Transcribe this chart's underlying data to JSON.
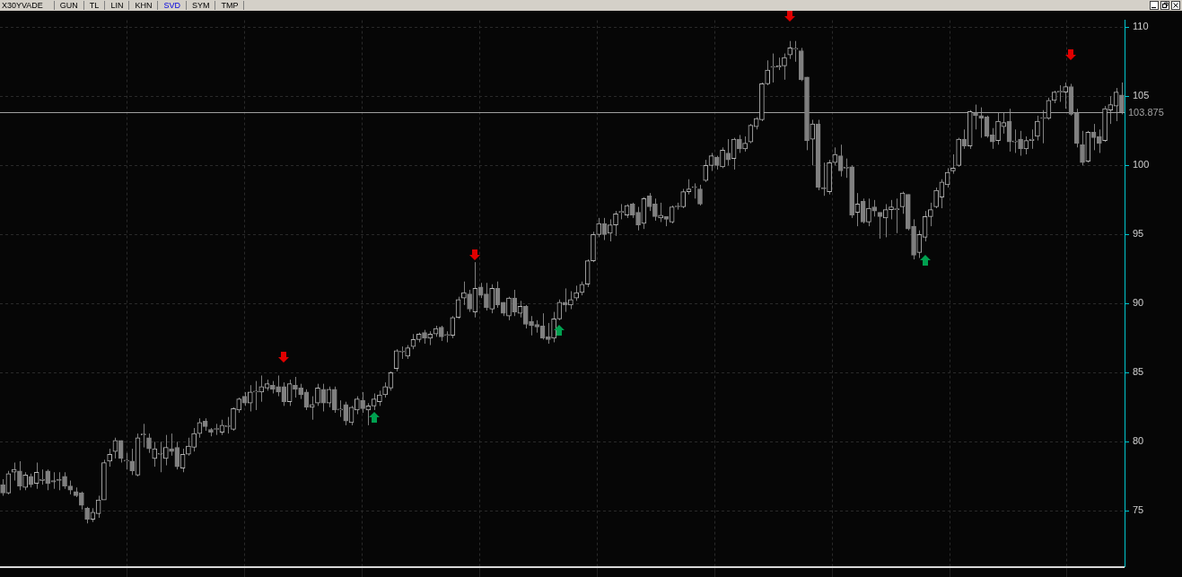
{
  "chart_data": {
    "type": "candlestick",
    "title": "X30YVADE",
    "annotations": [
      "GUN",
      "TL",
      "LIN",
      "KHN",
      "SVD",
      "SYM",
      "TMP"
    ],
    "categories": [
      null,
      null,
      null,
      null,
      null,
      null,
      null,
      null,
      null,
      null,
      null,
      null,
      null,
      null,
      null,
      null,
      null,
      null,
      null,
      null,
      null,
      null,
      null,
      null,
      null,
      null,
      null,
      null,
      null,
      null,
      null,
      null,
      null,
      null,
      null,
      null,
      null,
      null,
      null,
      null,
      null,
      null,
      null,
      null,
      null,
      null,
      null,
      null,
      null,
      null,
      null,
      null,
      null,
      null,
      null,
      null,
      null,
      null,
      null,
      null,
      null,
      null,
      null,
      null,
      null,
      null,
      null,
      null,
      null,
      null,
      null,
      null,
      null,
      null,
      null,
      null,
      null,
      null,
      null,
      null,
      null,
      null,
      null,
      null,
      null,
      null,
      null,
      null,
      null,
      null,
      null,
      null,
      null,
      null,
      null,
      null,
      null,
      null,
      null,
      null,
      null,
      null,
      null,
      null,
      null,
      null,
      null,
      null,
      null,
      null,
      null,
      null,
      null,
      null,
      null,
      null,
      null,
      null,
      null,
      null,
      null,
      null,
      null,
      null,
      null,
      null,
      null,
      null,
      null,
      null,
      null,
      null,
      null,
      null,
      null,
      null,
      null,
      null,
      null,
      null,
      null,
      null,
      null,
      null,
      null,
      null,
      null,
      null,
      null,
      null,
      null,
      null,
      null,
      null,
      null,
      null,
      null,
      null,
      null,
      null,
      null,
      null,
      null,
      null,
      null,
      null,
      null,
      null,
      null,
      null,
      null,
      null,
      null,
      null,
      null,
      null,
      null,
      null,
      null,
      null,
      null,
      null,
      null,
      null,
      null,
      null,
      null,
      null,
      null,
      null,
      null,
      null,
      null,
      null,
      null,
      null,
      null,
      null,
      null,
      null
    ],
    "ohlc": [
      [
        76.9,
        77.3,
        76.1,
        76.3
      ],
      [
        76.3,
        77.9,
        76.2,
        77.7
      ],
      [
        77.8,
        78.5,
        77.2,
        78.0
      ],
      [
        77.9,
        78.6,
        76.5,
        76.8
      ],
      [
        76.7,
        77.8,
        76.5,
        77.6
      ],
      [
        77.5,
        77.7,
        76.7,
        76.9
      ],
      [
        77.0,
        78.5,
        76.6,
        77.8
      ],
      [
        77.2,
        78.0,
        76.9,
        77.3
      ],
      [
        77.9,
        78.0,
        76.5,
        77.0
      ],
      [
        77.2,
        77.8,
        76.6,
        77.1
      ],
      [
        77.3,
        77.8,
        76.5,
        77.2
      ],
      [
        77.5,
        77.8,
        76.6,
        76.8
      ],
      [
        76.8,
        77.2,
        76.2,
        76.5
      ],
      [
        76.4,
        76.7,
        76.0,
        76.1
      ],
      [
        76.3,
        76.4,
        75.1,
        75.4
      ],
      [
        75.2,
        75.3,
        74.1,
        74.4
      ],
      [
        74.4,
        75.2,
        74.2,
        74.9
      ],
      [
        74.8,
        76.1,
        74.5,
        75.8
      ],
      [
        75.8,
        78.7,
        75.8,
        78.5
      ],
      [
        78.6,
        79.5,
        78.2,
        79.1
      ],
      [
        79.3,
        80.3,
        78.8,
        80.1
      ],
      [
        80.1,
        80.1,
        78.5,
        78.8
      ],
      [
        78.6,
        79.2,
        78.0,
        78.6
      ],
      [
        78.6,
        79.5,
        77.6,
        77.9
      ],
      [
        77.6,
        80.6,
        77.5,
        80.3
      ],
      [
        80.5,
        81.3,
        79.6,
        80.5
      ],
      [
        80.3,
        80.6,
        79.2,
        79.5
      ],
      [
        78.8,
        80.0,
        78.2,
        79.5
      ],
      [
        79.1,
        80.0,
        77.8,
        79.1
      ],
      [
        78.8,
        80.5,
        78.3,
        79.6
      ],
      [
        79.5,
        80.6,
        79.0,
        79.3
      ],
      [
        79.6,
        80.0,
        78.0,
        78.2
      ],
      [
        78.1,
        79.5,
        77.8,
        79.1
      ],
      [
        79.1,
        80.3,
        79.0,
        79.7
      ],
      [
        79.6,
        81.0,
        79.3,
        80.6
      ],
      [
        80.6,
        81.7,
        80.3,
        81.4
      ],
      [
        81.5,
        81.7,
        80.8,
        81.1
      ],
      [
        80.9,
        81.0,
        80.4,
        80.7
      ],
      [
        80.9,
        81.3,
        80.5,
        80.9
      ],
      [
        80.7,
        81.6,
        80.5,
        81.2
      ],
      [
        81.1,
        81.8,
        80.6,
        81.1
      ],
      [
        80.9,
        82.5,
        80.8,
        82.4
      ],
      [
        82.3,
        83.2,
        82.1,
        83.1
      ],
      [
        83.3,
        83.6,
        82.6,
        82.8
      ],
      [
        82.8,
        84.1,
        82.2,
        83.6
      ],
      [
        83.6,
        84.4,
        82.3,
        83.6
      ],
      [
        83.6,
        84.8,
        82.9,
        84.0
      ],
      [
        83.9,
        84.5,
        83.7,
        84.2
      ],
      [
        84.1,
        84.4,
        83.5,
        83.8
      ],
      [
        84.0,
        84.8,
        83.3,
        83.6
      ],
      [
        84.0,
        84.3,
        82.6,
        82.9
      ],
      [
        82.9,
        84.5,
        82.6,
        84.2
      ],
      [
        84.1,
        84.7,
        83.2,
        83.8
      ],
      [
        83.9,
        84.2,
        83.1,
        83.4
      ],
      [
        83.6,
        83.8,
        82.3,
        82.5
      ],
      [
        82.5,
        83.3,
        81.6,
        82.7
      ],
      [
        82.8,
        84.2,
        82.6,
        83.9
      ],
      [
        83.8,
        84.2,
        82.2,
        82.8
      ],
      [
        82.8,
        84.0,
        82.5,
        83.8
      ],
      [
        83.8,
        84.0,
        82.1,
        82.3
      ],
      [
        82.3,
        83.0,
        81.8,
        82.3
      ],
      [
        82.7,
        82.9,
        81.2,
        81.5
      ],
      [
        81.4,
        82.6,
        81.2,
        82.5
      ],
      [
        82.3,
        83.3,
        82.0,
        83.1
      ],
      [
        83.0,
        83.6,
        82.1,
        82.4
      ],
      [
        82.3,
        82.8,
        81.2,
        82.6
      ],
      [
        82.6,
        83.5,
        82.3,
        83.1
      ],
      [
        82.9,
        83.7,
        82.6,
        83.4
      ],
      [
        83.4,
        84.3,
        83.2,
        84.0
      ],
      [
        83.9,
        85.1,
        83.7,
        85.0
      ],
      [
        85.3,
        86.7,
        85.1,
        86.6
      ],
      [
        86.5,
        86.9,
        86.0,
        86.5
      ],
      [
        86.2,
        87.0,
        86.0,
        86.8
      ],
      [
        86.9,
        87.8,
        86.7,
        87.4
      ],
      [
        87.4,
        87.9,
        87.2,
        87.8
      ],
      [
        87.9,
        88.1,
        87.1,
        87.5
      ],
      [
        87.5,
        88.0,
        87.0,
        87.8
      ],
      [
        87.8,
        88.4,
        87.6,
        88.2
      ],
      [
        88.3,
        88.4,
        87.3,
        87.6
      ],
      [
        87.7,
        88.0,
        87.2,
        87.7
      ],
      [
        87.7,
        89.1,
        87.5,
        89.0
      ],
      [
        89.0,
        90.5,
        88.9,
        90.3
      ],
      [
        90.4,
        91.6,
        89.9,
        90.8
      ],
      [
        90.7,
        91.0,
        89.4,
        89.6
      ],
      [
        89.4,
        93.0,
        89.0,
        91.1
      ],
      [
        91.2,
        91.5,
        90.4,
        90.6
      ],
      [
        90.7,
        91.5,
        89.5,
        89.7
      ],
      [
        89.6,
        91.4,
        89.3,
        91.1
      ],
      [
        91.1,
        91.6,
        89.7,
        89.9
      ],
      [
        90.1,
        90.1,
        89.1,
        89.3
      ],
      [
        89.1,
        90.5,
        88.8,
        90.4
      ],
      [
        90.4,
        91.0,
        89.1,
        89.4
      ],
      [
        89.3,
        90.2,
        89.0,
        89.8
      ],
      [
        89.8,
        89.9,
        88.2,
        88.5
      ],
      [
        88.7,
        89.1,
        87.7,
        88.4
      ],
      [
        88.5,
        88.8,
        87.9,
        88.3
      ],
      [
        88.4,
        89.3,
        87.4,
        87.5
      ],
      [
        87.6,
        88.6,
        87.1,
        87.4
      ],
      [
        87.5,
        89.4,
        87.2,
        88.9
      ],
      [
        88.9,
        90.3,
        88.8,
        90.1
      ],
      [
        90.1,
        91.1,
        89.4,
        89.9
      ],
      [
        89.9,
        90.9,
        89.6,
        90.3
      ],
      [
        90.4,
        91.3,
        90.2,
        90.8
      ],
      [
        90.8,
        91.6,
        90.6,
        91.4
      ],
      [
        91.4,
        93.2,
        91.2,
        93.1
      ],
      [
        93.1,
        95.2,
        93.0,
        95.0
      ],
      [
        95.0,
        96.2,
        94.8,
        95.8
      ],
      [
        95.8,
        96.2,
        94.6,
        95.0
      ],
      [
        95.1,
        96.1,
        94.5,
        95.7
      ],
      [
        95.7,
        96.7,
        94.9,
        96.5
      ],
      [
        96.6,
        97.2,
        96.1,
        96.6
      ],
      [
        96.4,
        97.2,
        96.2,
        97.1
      ],
      [
        97.2,
        97.3,
        96.2,
        96.4
      ],
      [
        96.6,
        97.0,
        95.3,
        95.7
      ],
      [
        95.8,
        97.7,
        95.4,
        97.6
      ],
      [
        97.8,
        98.0,
        96.7,
        97.0
      ],
      [
        97.2,
        97.6,
        96.0,
        96.3
      ],
      [
        96.2,
        97.3,
        95.9,
        96.4
      ],
      [
        96.3,
        96.3,
        95.6,
        96.1
      ],
      [
        95.9,
        97.1,
        95.8,
        97.0
      ],
      [
        97.0,
        97.3,
        96.8,
        97.0
      ],
      [
        97.0,
        98.3,
        96.9,
        98.1
      ],
      [
        98.1,
        99.0,
        97.9,
        98.3
      ],
      [
        98.4,
        98.7,
        97.6,
        98.4
      ],
      [
        98.3,
        98.6,
        97.1,
        97.2
      ],
      [
        98.9,
        100.4,
        98.8,
        100.0
      ],
      [
        100.0,
        100.9,
        99.6,
        100.7
      ],
      [
        100.6,
        100.7,
        99.7,
        100.0
      ],
      [
        99.9,
        101.3,
        99.8,
        101.1
      ],
      [
        100.9,
        101.9,
        100.0,
        100.4
      ],
      [
        100.5,
        102.0,
        99.7,
        101.9
      ],
      [
        101.9,
        102.2,
        100.9,
        101.2
      ],
      [
        101.2,
        102.1,
        101.0,
        101.6
      ],
      [
        101.7,
        103.0,
        101.6,
        102.9
      ],
      [
        102.8,
        103.5,
        102.6,
        103.4
      ],
      [
        103.3,
        106.0,
        103.2,
        105.9
      ],
      [
        105.9,
        107.6,
        105.8,
        106.9
      ],
      [
        107.1,
        108.1,
        106.0,
        107.1
      ],
      [
        107.1,
        107.8,
        106.9,
        107.2
      ],
      [
        107.2,
        108.1,
        106.2,
        107.8
      ],
      [
        108.0,
        109.0,
        107.7,
        108.5
      ],
      [
        108.4,
        109.0,
        107.5,
        108.4
      ],
      [
        108.3,
        108.5,
        106.1,
        106.2
      ],
      [
        106.4,
        106.4,
        101.1,
        101.8
      ],
      [
        101.9,
        103.3,
        100.0,
        103.0
      ],
      [
        103.0,
        103.3,
        98.2,
        98.4
      ],
      [
        98.4,
        100.2,
        97.8,
        98.3
      ],
      [
        98.1,
        100.4,
        97.9,
        100.2
      ],
      [
        100.2,
        101.3,
        100.0,
        100.8
      ],
      [
        100.7,
        101.5,
        99.2,
        99.6
      ],
      [
        99.8,
        100.5,
        99.1,
        99.8
      ],
      [
        99.9,
        100.0,
        96.2,
        96.4
      ],
      [
        96.6,
        98.0,
        95.6,
        97.2
      ],
      [
        97.4,
        97.6,
        95.8,
        95.9
      ],
      [
        95.9,
        97.6,
        95.6,
        96.9
      ],
      [
        97.0,
        97.5,
        96.3,
        96.7
      ],
      [
        96.6,
        96.6,
        94.7,
        96.3
      ],
      [
        96.2,
        97.2,
        94.8,
        96.8
      ],
      [
        96.8,
        97.5,
        96.1,
        97.0
      ],
      [
        96.8,
        97.6,
        95.1,
        96.8
      ],
      [
        97.0,
        98.1,
        96.5,
        98.0
      ],
      [
        97.9,
        97.9,
        95.3,
        95.4
      ],
      [
        95.6,
        96.1,
        93.2,
        93.5
      ],
      [
        93.7,
        95.3,
        93.3,
        95.0
      ],
      [
        94.8,
        96.7,
        94.5,
        96.3
      ],
      [
        96.3,
        97.3,
        95.6,
        96.8
      ],
      [
        97.0,
        98.4,
        96.9,
        98.2
      ],
      [
        97.7,
        99.0,
        96.9,
        98.8
      ],
      [
        98.6,
        99.8,
        98.4,
        99.5
      ],
      [
        99.6,
        100.8,
        99.4,
        99.8
      ],
      [
        100.0,
        102.0,
        99.9,
        101.9
      ],
      [
        101.9,
        102.6,
        101.2,
        101.4
      ],
      [
        101.4,
        104.0,
        101.2,
        103.9
      ],
      [
        103.8,
        104.4,
        102.6,
        103.6
      ],
      [
        103.6,
        104.2,
        102.0,
        103.4
      ],
      [
        103.5,
        103.6,
        102.0,
        102.1
      ],
      [
        102.2,
        102.7,
        101.2,
        101.7
      ],
      [
        101.8,
        103.8,
        101.5,
        103.2
      ],
      [
        102.8,
        103.8,
        102.3,
        103.1
      ],
      [
        103.2,
        104.1,
        101.0,
        101.7
      ],
      [
        101.7,
        102.6,
        100.9,
        101.7
      ],
      [
        101.9,
        102.5,
        100.7,
        101.2
      ],
      [
        101.2,
        102.1,
        100.8,
        101.8
      ],
      [
        101.8,
        102.6,
        101.2,
        101.9
      ],
      [
        102.1,
        103.6,
        101.8,
        103.2
      ],
      [
        103.4,
        104.0,
        101.6,
        103.4
      ],
      [
        103.4,
        104.9,
        103.3,
        104.7
      ],
      [
        104.7,
        105.4,
        104.5,
        105.3
      ],
      [
        105.3,
        105.8,
        104.6,
        105.3
      ],
      [
        105.3,
        106.0,
        104.1,
        105.7
      ],
      [
        105.7,
        105.9,
        103.6,
        103.7
      ],
      [
        103.8,
        104.1,
        101.3,
        101.6
      ],
      [
        101.5,
        102.5,
        100.0,
        100.2
      ],
      [
        100.3,
        102.5,
        100.2,
        102.4
      ],
      [
        102.4,
        103.0,
        101.1,
        102.0
      ],
      [
        102.1,
        102.6,
        100.9,
        101.6
      ],
      [
        101.8,
        104.3,
        101.7,
        104.1
      ],
      [
        104.0,
        105.0,
        103.0,
        104.4
      ],
      [
        104.3,
        105.6,
        103.2,
        105.3
      ],
      [
        105.1,
        106.0,
        103.7,
        103.875
      ]
    ],
    "ylim": [
      71,
      110.5
    ],
    "yticks": [
      75,
      80,
      85,
      90,
      95,
      100,
      105,
      110
    ],
    "grid": true,
    "tick_labels": "y",
    "ref_lines": [
      {
        "axis": "y",
        "value": 103.875,
        "label": "103.875",
        "color": "#a0a0a0"
      }
    ]
  }
}
